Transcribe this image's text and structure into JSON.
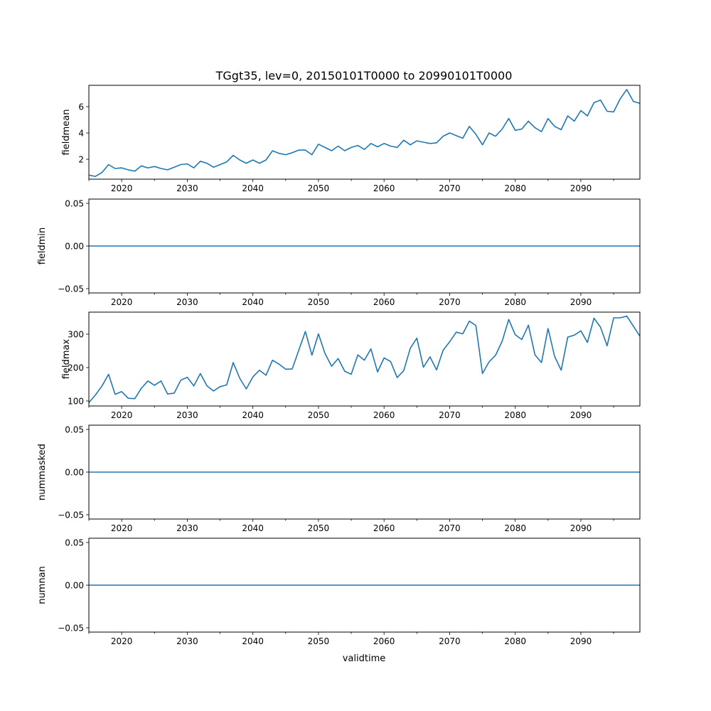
{
  "chart_data": {
    "type": "line",
    "title": "TGgt35, lev=0, 20150101T0000 to 20990101T0000",
    "xlabel": "validtime",
    "xlim": [
      2015,
      2099
    ],
    "xticks": [
      2020,
      2030,
      2040,
      2050,
      2060,
      2070,
      2080,
      2090
    ],
    "x_start": 2015,
    "line_color": "#1f77b4",
    "subplots": [
      {
        "ylabel": "fieldmean",
        "ylim": [
          0.49,
          7.62
        ],
        "yticks": [
          2,
          4,
          6
        ],
        "ytick_labels": [
          "2",
          "4",
          "6"
        ],
        "values": [
          0.8,
          0.7,
          1.0,
          1.6,
          1.3,
          1.35,
          1.2,
          1.1,
          1.5,
          1.35,
          1.45,
          1.3,
          1.2,
          1.4,
          1.6,
          1.65,
          1.35,
          1.85,
          1.7,
          1.4,
          1.6,
          1.8,
          2.3,
          1.95,
          1.7,
          1.95,
          1.7,
          1.95,
          2.65,
          2.45,
          2.35,
          2.5,
          2.7,
          2.7,
          2.35,
          3.15,
          2.9,
          2.65,
          3.0,
          2.65,
          2.9,
          3.05,
          2.75,
          3.2,
          2.95,
          3.2,
          3.0,
          2.9,
          3.45,
          3.1,
          3.4,
          3.3,
          3.2,
          3.25,
          3.75,
          4.0,
          3.8,
          3.6,
          4.5,
          3.9,
          3.1,
          4.0,
          3.75,
          4.3,
          5.1,
          4.2,
          4.3,
          4.9,
          4.4,
          4.1,
          5.1,
          4.5,
          4.25,
          5.3,
          4.9,
          5.7,
          5.3,
          6.3,
          6.5,
          5.65,
          5.6,
          6.6,
          7.3,
          6.4,
          6.25
        ]
      },
      {
        "ylabel": "fieldmin",
        "ylim": [
          -0.055,
          0.055
        ],
        "yticks": [
          -0.05,
          0,
          0.05
        ],
        "ytick_labels": [
          "−0.05",
          "0.00",
          "0.05"
        ],
        "constant": 0
      },
      {
        "ylabel": "fieldmax",
        "ylim": [
          85,
          366
        ],
        "yticks": [
          100,
          200,
          300
        ],
        "ytick_labels": [
          "100",
          "200",
          "300"
        ],
        "values": [
          95,
          118,
          145,
          180,
          120,
          128,
          108,
          107,
          138,
          160,
          147,
          160,
          121,
          123,
          162,
          171,
          145,
          182,
          145,
          130,
          143,
          148,
          215,
          168,
          136,
          172,
          192,
          177,
          222,
          210,
          195,
          196,
          252,
          308,
          237,
          301,
          242,
          204,
          227,
          189,
          180,
          238,
          222,
          256,
          187,
          229,
          218,
          170,
          191,
          258,
          288,
          201,
          232,
          193,
          252,
          277,
          306,
          301,
          339,
          326,
          182,
          217,
          237,
          279,
          344,
          298,
          284,
          327,
          238,
          215,
          317,
          233,
          192,
          291,
          297,
          310,
          275,
          348,
          321,
          265,
          349,
          349,
          354,
          324,
          294
        ]
      },
      {
        "ylabel": "nummasked",
        "ylim": [
          -0.055,
          0.055
        ],
        "yticks": [
          -0.05,
          0,
          0.05
        ],
        "ytick_labels": [
          "−0.05",
          "0.00",
          "0.05"
        ],
        "constant": 0
      },
      {
        "ylabel": "numnan",
        "ylim": [
          -0.055,
          0.055
        ],
        "yticks": [
          -0.05,
          0,
          0.05
        ],
        "ytick_labels": [
          "−0.05",
          "0.00",
          "0.05"
        ],
        "constant": 0
      }
    ]
  }
}
